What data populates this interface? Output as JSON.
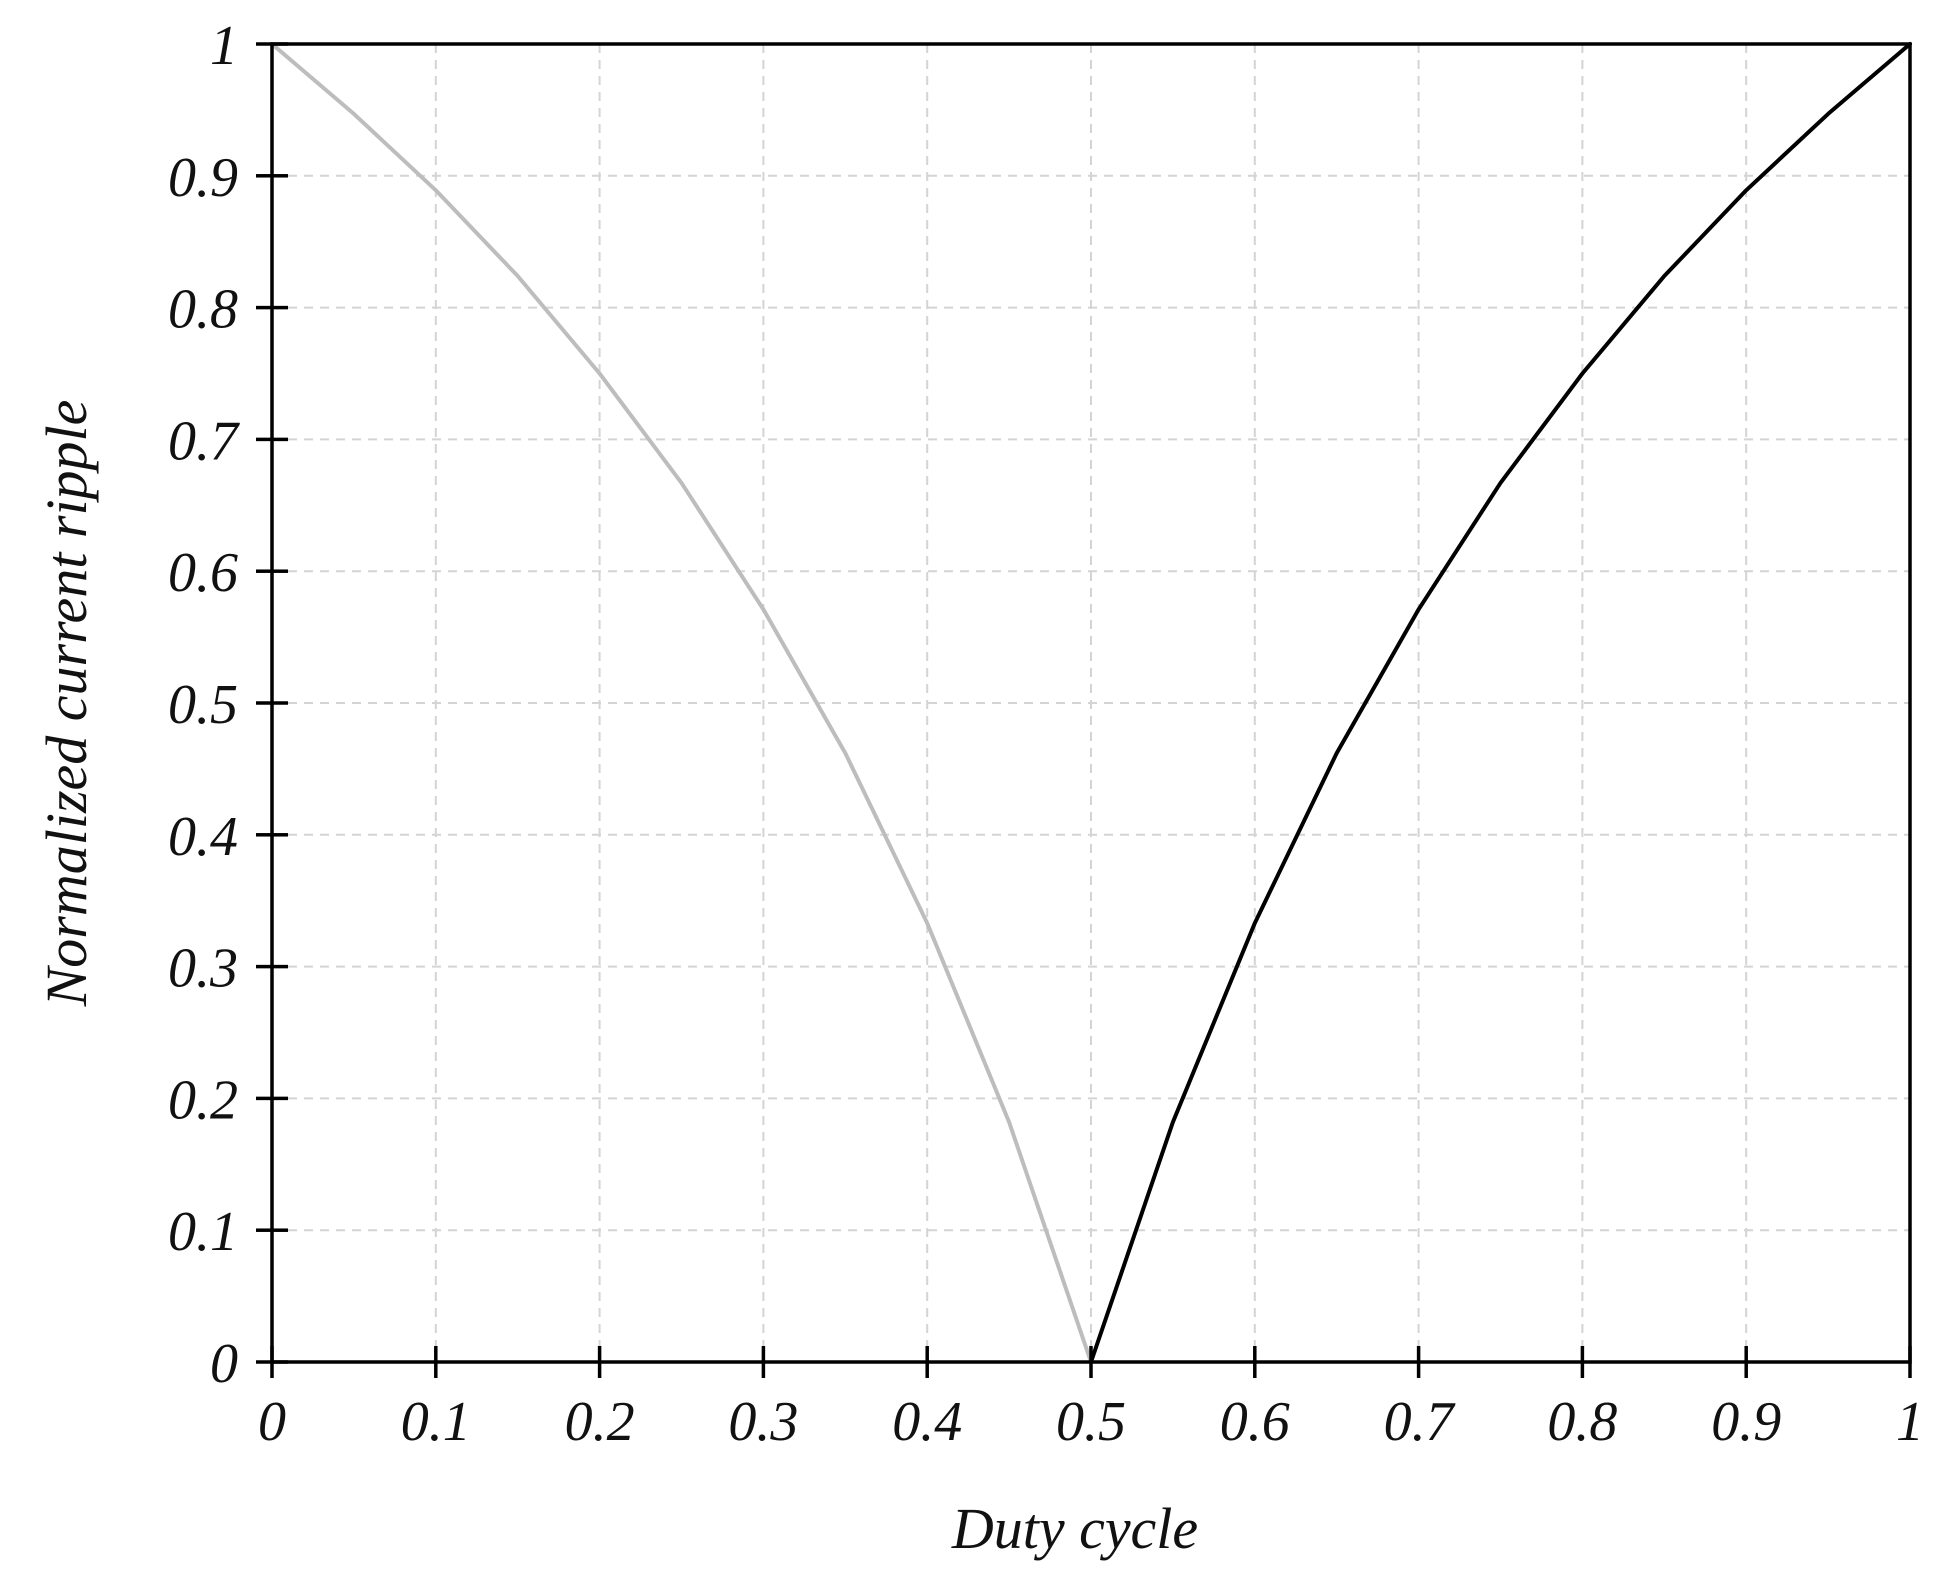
{
  "chart_data": {
    "type": "line",
    "title": "",
    "xlabel": "Duty cycle",
    "ylabel": "Normalized current ripple",
    "xlim": [
      0,
      1
    ],
    "ylim": [
      0,
      1
    ],
    "xticks": [
      "0",
      "0.1",
      "0.2",
      "0.3",
      "0.4",
      "0.5",
      "0.6",
      "0.7",
      "0.8",
      "0.9",
      "1"
    ],
    "yticks": [
      "0",
      "0.1",
      "0.2",
      "0.3",
      "0.4",
      "0.5",
      "0.6",
      "0.7",
      "0.8",
      "0.9",
      "1"
    ],
    "grid": true,
    "legend": "none",
    "series": [
      {
        "color": "#bdbdbd",
        "x": [
          0,
          0.05,
          0.1,
          0.15,
          0.2,
          0.25,
          0.3,
          0.35,
          0.4,
          0.45,
          0.5
        ],
        "y": [
          1.0,
          0.947,
          0.889,
          0.824,
          0.75,
          0.667,
          0.571,
          0.462,
          0.333,
          0.182,
          0.0
        ]
      },
      {
        "color": "#000000",
        "x": [
          0.5,
          0.55,
          0.6,
          0.65,
          0.7,
          0.75,
          0.8,
          0.85,
          0.9,
          0.95,
          1.0
        ],
        "y": [
          0.0,
          0.182,
          0.333,
          0.462,
          0.571,
          0.667,
          0.75,
          0.824,
          0.889,
          0.947,
          1.0
        ]
      }
    ]
  }
}
